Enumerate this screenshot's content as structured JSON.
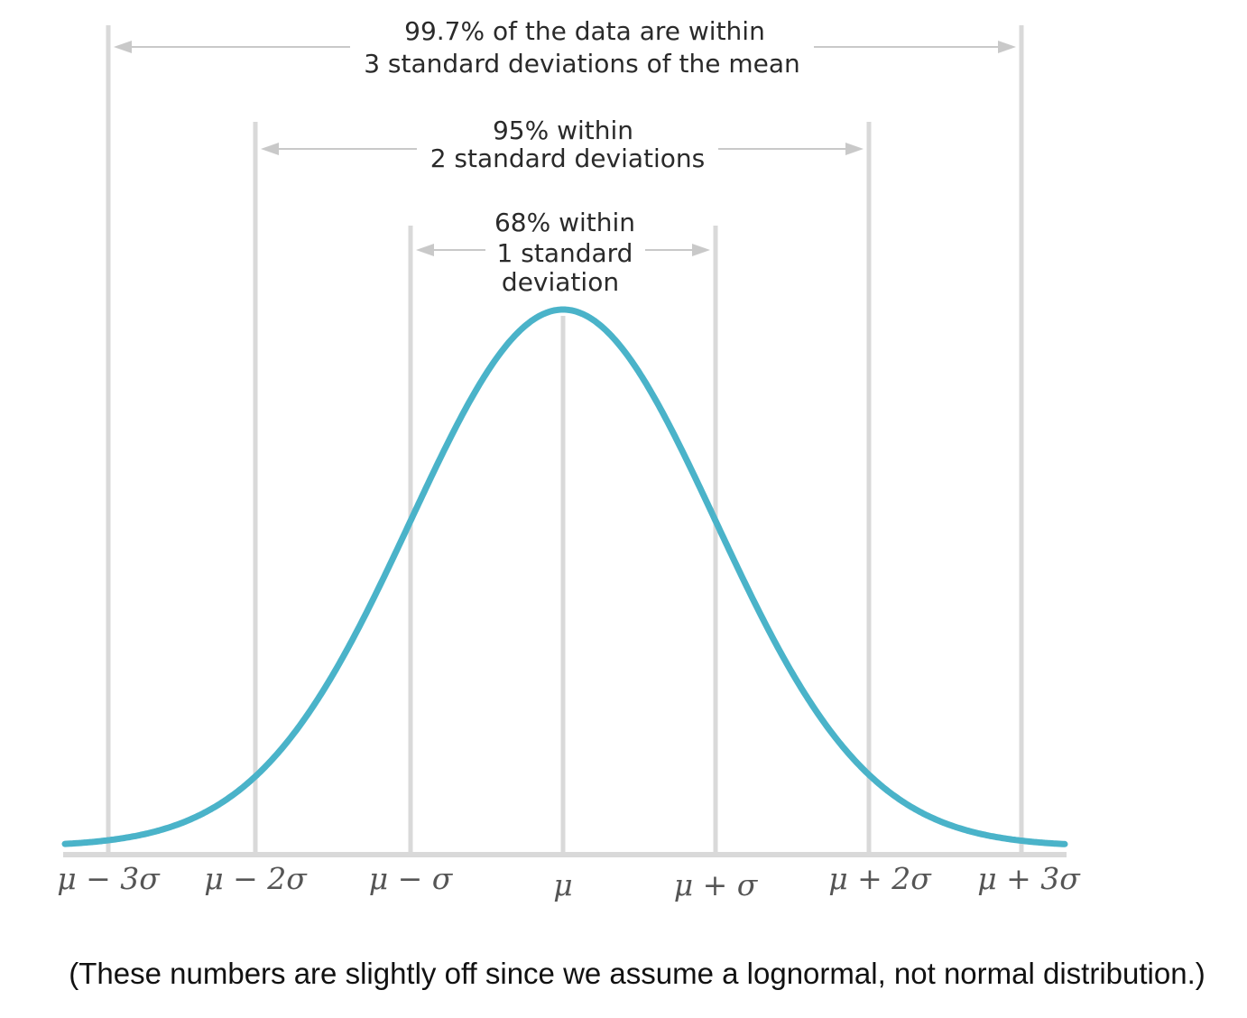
{
  "diagram": {
    "ranges": [
      {
        "lines": [
          "99.7% of the data are within",
          "3 standard deviations of the mean"
        ]
      },
      {
        "lines": [
          "95% within",
          "2 standard deviations"
        ]
      },
      {
        "lines": [
          "68% within",
          "1 standard",
          "deviation"
        ]
      }
    ],
    "tick_labels": [
      "μ − 3σ",
      "μ − 2σ",
      "μ − σ",
      "μ",
      "μ + σ",
      "μ + 2σ",
      "μ + 3σ"
    ],
    "colors": {
      "curve": "#4ab3c9",
      "guide_lines": "#d9d9d9",
      "arrows": "#c9c9c9",
      "text": "#2a2a2a"
    }
  },
  "caption": "(These numbers are slightly off since we assume a lognormal, not normal distribution.)"
}
